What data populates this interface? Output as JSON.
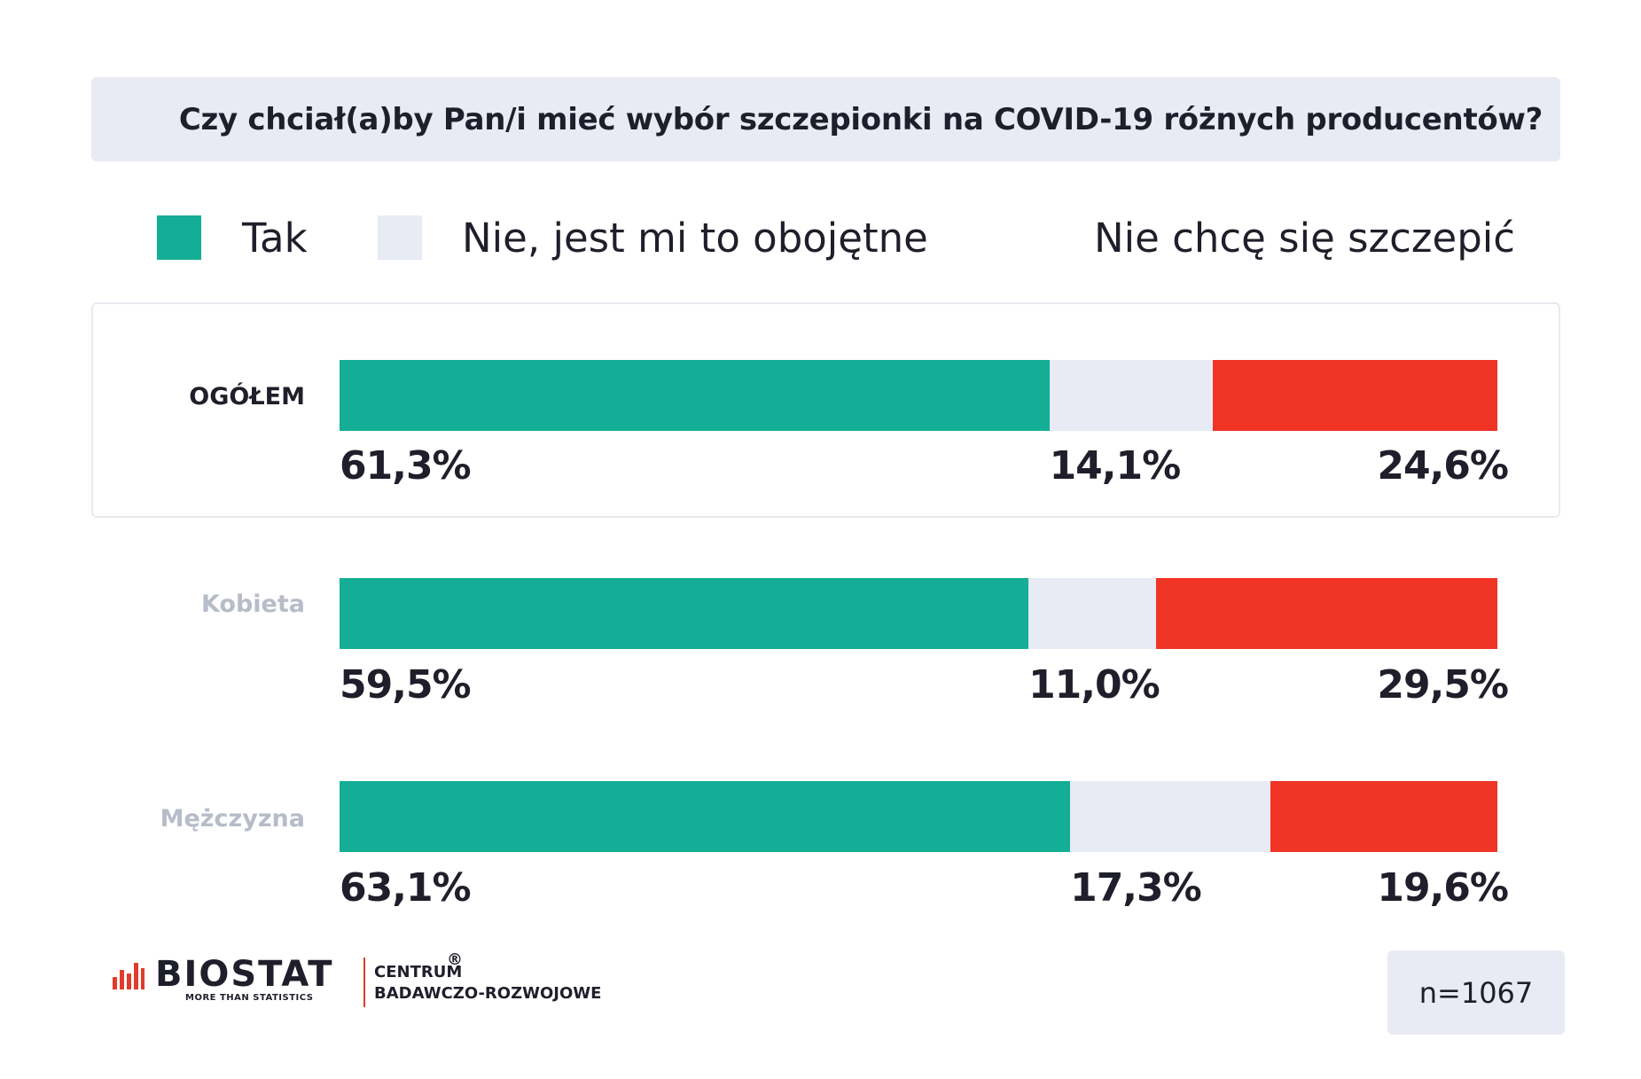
{
  "title": "Czy chciał(a)by Pan/i mieć wybór szczepionki na COVID-19 różnych producentów?",
  "legend": [
    {
      "label": "Tak",
      "color": "#14ae96",
      "swatch": true
    },
    {
      "label": "Nie, jest mi to obojętne",
      "color": "#e8eaf4",
      "swatch": true
    },
    {
      "label": "Nie chcę się szczepić",
      "color": "#f03426",
      "swatch": false
    }
  ],
  "chart_data": {
    "type": "bar",
    "orientation": "horizontal",
    "stacked": true,
    "title": "Czy chciał(a)by Pan/i mieć wybór szczepionki na COVID-19 różnych producentów?",
    "categories": [
      "OGÓŁEM",
      "Kobieta",
      "Mężczyzna"
    ],
    "series": [
      {
        "name": "Tak",
        "color": "#14ae96",
        "values": [
          61.3,
          59.5,
          63.1
        ],
        "labels": [
          "61,3%",
          "59,5%",
          "63,1%"
        ]
      },
      {
        "name": "Nie, jest mi to obojętne",
        "color": "#e8eaf4",
        "values": [
          14.1,
          11.0,
          17.3
        ],
        "labels": [
          "14,1%",
          "11,0%",
          "17,3%"
        ]
      },
      {
        "name": "Nie chcę się szczepić",
        "color": "#f03426",
        "values": [
          24.6,
          29.5,
          19.6
        ],
        "labels": [
          "24,6%",
          "29,5%",
          "19,6%"
        ]
      }
    ],
    "xlim": [
      0,
      100
    ],
    "category_colors": [
      "#1f1f2b",
      "#b7bcc9",
      "#b7bcc9"
    ],
    "legend_position": "top"
  },
  "footer": {
    "logo_word": "BIOSTAT",
    "logo_reg": "®",
    "logo_tagline": "MORE THAN STATISTICS",
    "logo_sub1": "CENTRUM",
    "logo_sub2": "BADAWCZO-ROZWOJOWE",
    "sample": "n=1067"
  }
}
